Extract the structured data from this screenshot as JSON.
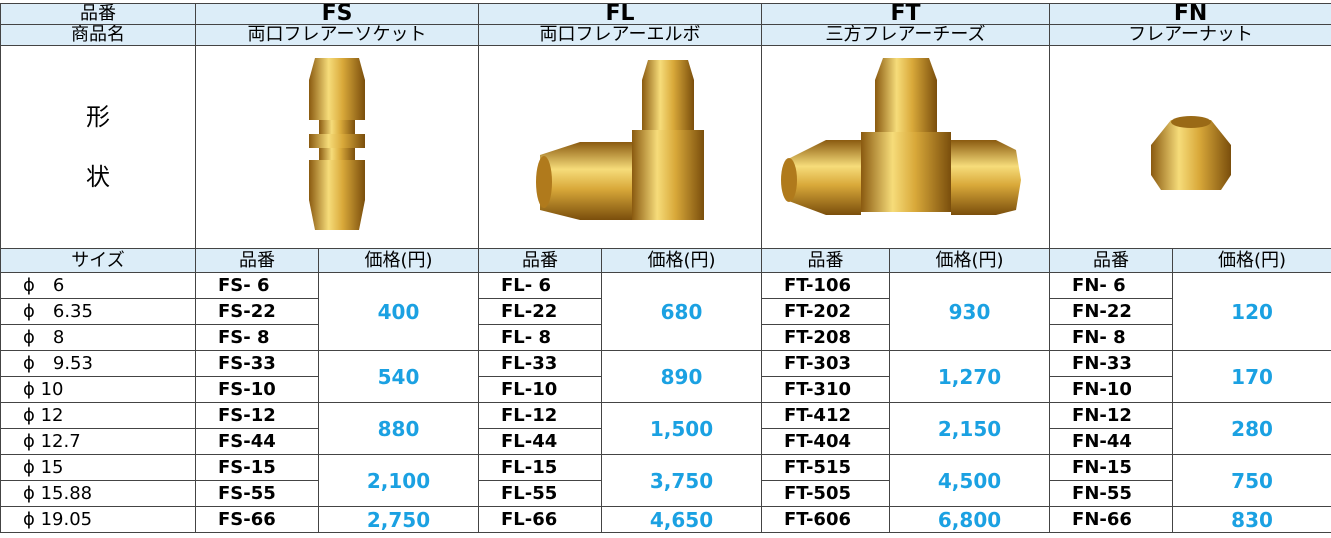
{
  "header": {
    "code_label": "品番",
    "name_label": "商品名",
    "shape_label": [
      "形",
      "状"
    ]
  },
  "products": [
    {
      "code": "FS",
      "name": "両口フレアーソケット"
    },
    {
      "code": "FL",
      "name": "両口フレアーエルボ"
    },
    {
      "code": "FT",
      "name": "三方フレアーチーズ"
    },
    {
      "code": "FN",
      "name": "フレアーナット"
    }
  ],
  "columns": {
    "size": "サイズ",
    "part": "品番",
    "price": "価格(円)"
  },
  "sizes": [
    "ϕ　6",
    "ϕ　6.35",
    "ϕ　8",
    "ϕ　9.53",
    "ϕ 10",
    "ϕ 12",
    "ϕ 12.7",
    "ϕ 15",
    "ϕ 15.88",
    "ϕ 19.05"
  ],
  "groups": [
    [
      {
        "price": "400",
        "parts": [
          "FS- 6",
          "FS-22",
          "FS- 8"
        ]
      },
      {
        "price": "540",
        "parts": [
          "FS-33",
          "FS-10"
        ]
      },
      {
        "price": "880",
        "parts": [
          "FS-12",
          "FS-44"
        ]
      },
      {
        "price": "2,100",
        "parts": [
          "FS-15",
          "FS-55"
        ]
      },
      {
        "price": "2,750",
        "parts": [
          "FS-66"
        ]
      }
    ],
    [
      {
        "price": "680",
        "parts": [
          "FL- 6",
          "FL-22",
          "FL- 8"
        ]
      },
      {
        "price": "890",
        "parts": [
          "FL-33",
          "FL-10"
        ]
      },
      {
        "price": "1,500",
        "parts": [
          "FL-12",
          "FL-44"
        ]
      },
      {
        "price": "3,750",
        "parts": [
          "FL-15",
          "FL-55"
        ]
      },
      {
        "price": "4,650",
        "parts": [
          "FL-66"
        ]
      }
    ],
    [
      {
        "price": "930",
        "parts": [
          "FT-106",
          "FT-202",
          "FT-208"
        ]
      },
      {
        "price": "1,270",
        "parts": [
          "FT-303",
          "FT-310"
        ]
      },
      {
        "price": "2,150",
        "parts": [
          "FT-412",
          "FT-404"
        ]
      },
      {
        "price": "4,500",
        "parts": [
          "FT-515",
          "FT-505"
        ]
      },
      {
        "price": "6,800",
        "parts": [
          "FT-606"
        ]
      }
    ],
    [
      {
        "price": "120",
        "parts": [
          "FN- 6",
          "FN-22",
          "FN- 8"
        ]
      },
      {
        "price": "170",
        "parts": [
          "FN-33",
          "FN-10"
        ]
      },
      {
        "price": "280",
        "parts": [
          "FN-12",
          "FN-44"
        ]
      },
      {
        "price": "750",
        "parts": [
          "FN-15",
          "FN-55"
        ]
      },
      {
        "price": "830",
        "parts": [
          "FN-66"
        ]
      }
    ]
  ]
}
